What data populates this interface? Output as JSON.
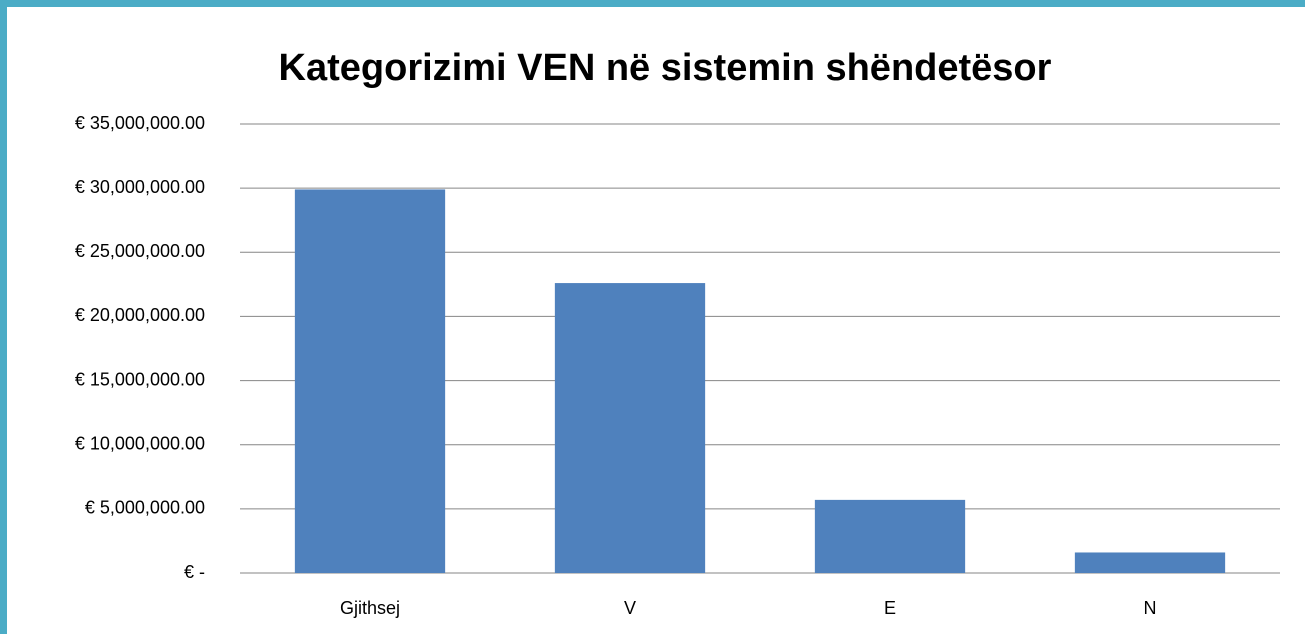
{
  "chart_data": {
    "type": "bar",
    "title": "Kategorizimi VEN në sistemin shëndetësor",
    "categories": [
      "Gjithsej",
      "V",
      "E",
      "N"
    ],
    "values": [
      29900000,
      22600000,
      5700000,
      1600000
    ],
    "color": "#4f81bd",
    "ylim": [
      0,
      35000000
    ],
    "yticks": [
      {
        "value": 0,
        "label": "€ -"
      },
      {
        "value": 5000000,
        "label": "€ 5,000,000.00"
      },
      {
        "value": 10000000,
        "label": "€ 10,000,000.00"
      },
      {
        "value": 15000000,
        "label": "€ 15,000,000.00"
      },
      {
        "value": 20000000,
        "label": "€ 20,000,000.00"
      },
      {
        "value": 25000000,
        "label": "€ 25,000,000.00"
      },
      {
        "value": 30000000,
        "label": "€ 30,000,000.00"
      },
      {
        "value": 35000000,
        "label": "€ 35,000,000.00"
      }
    ],
    "grid": true
  }
}
